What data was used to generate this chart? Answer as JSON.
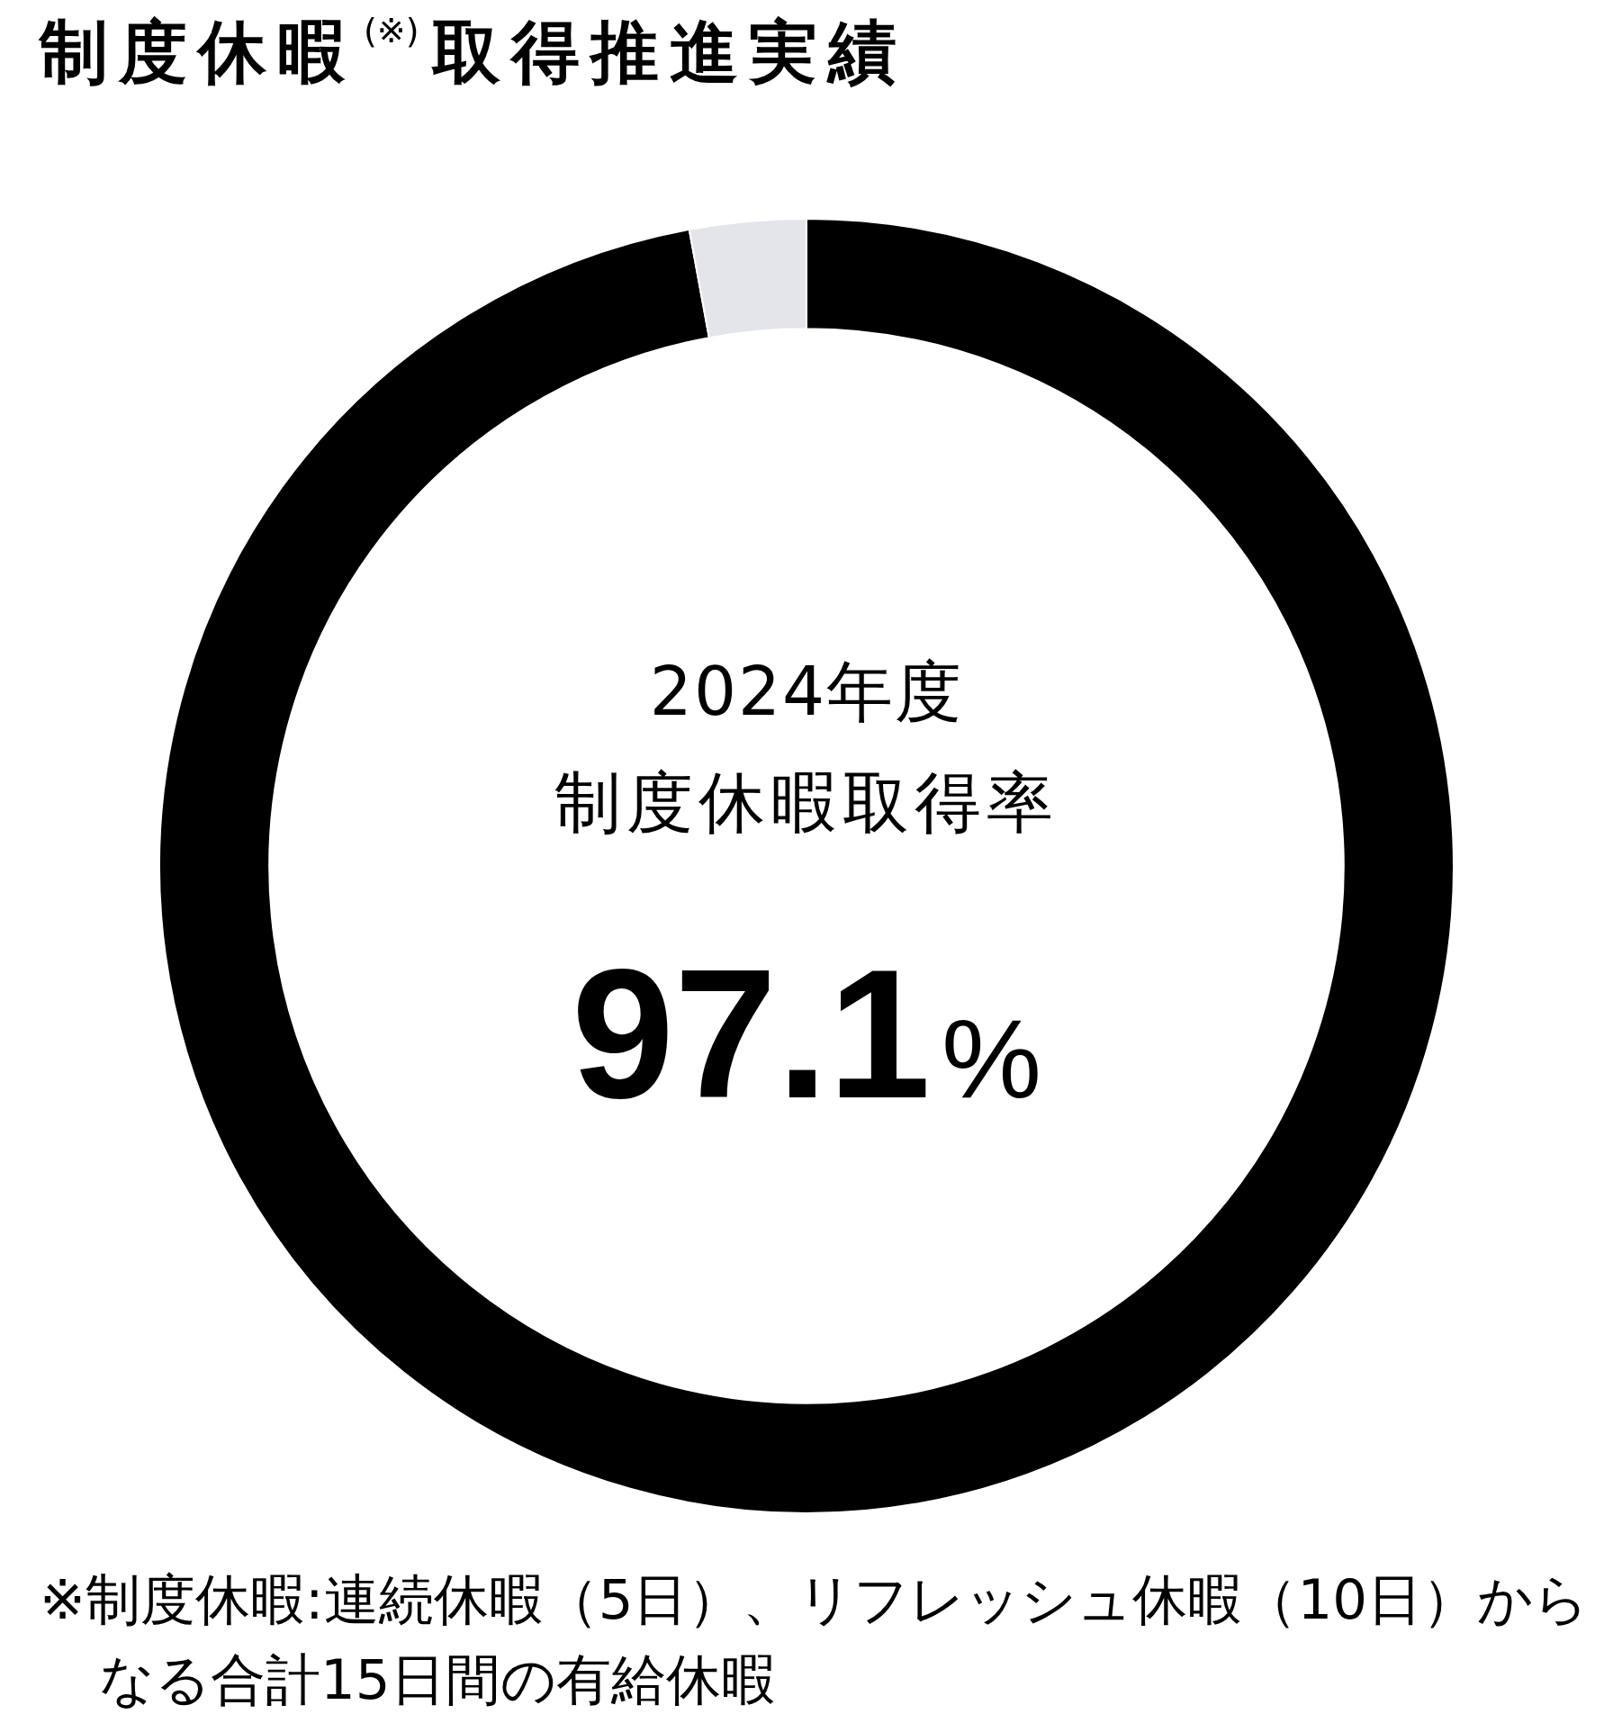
{
  "chart_data": {
    "type": "donut",
    "title": "制度休暇$^{(※)}$取得推進実績",
    "categories": [
      null,
      null
    ],
    "values": [
      97.1,
      2.9
    ],
    "colors": [
      "#000000",
      "#e4e5eb"
    ],
    "value_labels": [
      "97.1%",
      null
    ],
    "annotations": [
      "2024年度",
      "制度休暇取得率",
      "※制度休暇:連続休暇（5日）、リフレッシュ休暇（10日）からなる合計15日間の有給休暇"
    ]
  }
}
